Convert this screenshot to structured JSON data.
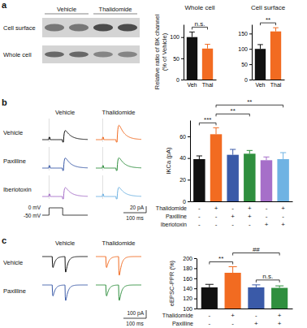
{
  "figure": {
    "panel_labels": [
      "a",
      "b",
      "c"
    ],
    "blot": {
      "columns": [
        "Vehicle",
        "Thalidomide"
      ],
      "rows": [
        "Cell surface",
        "Whole cell"
      ]
    },
    "traces_b": {
      "columns": [
        "Vehicle",
        "Thalidomide"
      ],
      "rows": [
        "Vehicle",
        "Paxilline",
        "Iberiotoxin"
      ],
      "protocol": [
        "0 mV",
        "-50 mV"
      ],
      "scale": [
        "20 pA",
        "100 ms"
      ]
    },
    "traces_c": {
      "columns": [
        "Vehicle",
        "Thalidomide"
      ],
      "rows": [
        "Vehicle",
        "Paxilline"
      ],
      "scale": [
        "100 pA",
        "100 ms"
      ]
    }
  },
  "chart_data": [
    {
      "type": "bar",
      "title": "Whole cell",
      "categories": [
        "Veh",
        "Thal"
      ],
      "values": [
        100,
        73
      ],
      "errors": [
        12,
        10
      ],
      "colors": [
        "#111111",
        "#f26b21"
      ],
      "ylim": [
        0,
        130
      ],
      "yticks": [
        0,
        50,
        100
      ],
      "y_label": [
        "Relative ratio of BK channel",
        "(% of Vehicle)"
      ],
      "annotations": [
        {
          "text": "n.s.",
          "between": [
            0,
            1
          ]
        }
      ]
    },
    {
      "type": "bar",
      "title": "Cell surface",
      "categories": [
        "Veh",
        "Thal"
      ],
      "values": [
        100,
        157
      ],
      "errors": [
        14,
        12
      ],
      "colors": [
        "#111111",
        "#f26b21"
      ],
      "ylim": [
        0,
        180
      ],
      "yticks": [
        0,
        50,
        100,
        150
      ],
      "annotations": [
        {
          "text": "**",
          "between": [
            0,
            1
          ]
        }
      ]
    },
    {
      "type": "bar",
      "categories": [
        null,
        null,
        null,
        null,
        null,
        null
      ],
      "values": [
        39,
        62,
        43,
        44,
        38,
        39
      ],
      "errors": [
        3,
        6,
        5,
        3,
        3,
        6
      ],
      "colors": [
        "#111111",
        "#f26b21",
        "#3a5aa8",
        "#2f8f3e",
        "#a66fc9",
        "#6fb3e3"
      ],
      "ylim": [
        0,
        75
      ],
      "yticks": [
        0,
        20,
        40,
        60
      ],
      "y_label": "IKCa (pA)",
      "conditions": [
        {
          "name": "Thalidomide",
          "marks": [
            "-",
            "+",
            "-",
            "+",
            "-",
            "+"
          ]
        },
        {
          "name": "Paxilline",
          "marks": [
            "-",
            "-",
            "+",
            "+",
            "-",
            "-"
          ]
        },
        {
          "name": "Iberiotoxin",
          "marks": [
            "-",
            "-",
            "-",
            "-",
            "+",
            "+"
          ]
        }
      ],
      "annotations": [
        {
          "text": "***",
          "between": [
            0,
            1
          ]
        },
        {
          "text": "**",
          "between": [
            1,
            3
          ]
        },
        {
          "text": "**",
          "between": [
            1,
            5
          ]
        }
      ]
    },
    {
      "type": "bar",
      "categories": [
        null,
        null,
        null,
        null
      ],
      "values": [
        142,
        171,
        142,
        141
      ],
      "errors": [
        6,
        12,
        5,
        4
      ],
      "colors": [
        "#111111",
        "#f26b21",
        "#3a5aa8",
        "#2f8f3e"
      ],
      "ylim": [
        100,
        200
      ],
      "yticks": [
        100,
        120,
        140,
        160,
        180,
        200
      ],
      "y_label": "eEPSC-PPR (%)",
      "conditions": [
        {
          "name": "Thalidomide",
          "marks": [
            "-",
            "+",
            "-",
            "+"
          ]
        },
        {
          "name": "Paxilline",
          "marks": [
            "-",
            "-",
            "+",
            "+"
          ]
        }
      ],
      "annotations": [
        {
          "text": "**",
          "between": [
            0,
            1
          ]
        },
        {
          "text": "##",
          "between": [
            1,
            3
          ]
        },
        {
          "text": "n.s.",
          "between": [
            2,
            3
          ]
        }
      ]
    }
  ]
}
